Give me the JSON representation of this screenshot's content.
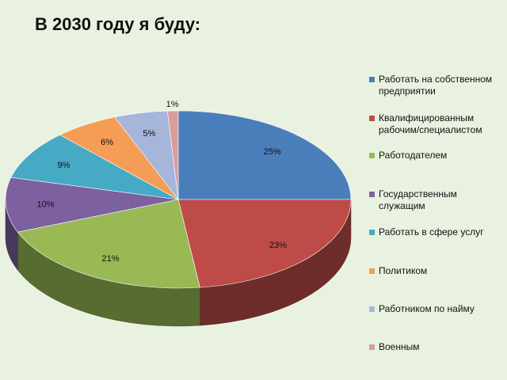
{
  "title": "В 2030 году я буду:",
  "chart_data": {
    "type": "pie",
    "title": "В 2030 году я буду:",
    "three_d": true,
    "legend_position": "right",
    "slices": [
      {
        "label": "Работать на собственном предприятии",
        "value": 25,
        "display": "25%",
        "color": "#4a7ebb"
      },
      {
        "label": "Квалифицированным рабочим/специалистом",
        "value": 23,
        "display": "23%",
        "color": "#be4b48"
      },
      {
        "label": "Работодателем",
        "value": 21,
        "display": "21%",
        "color": "#98b954"
      },
      {
        "label": "Государственным служащим",
        "value": 10,
        "display": "10%",
        "color": "#7d60a0"
      },
      {
        "label": "Работать в сфере услуг",
        "value": 9,
        "display": "9%",
        "color": "#46aac5"
      },
      {
        "label": "Политиком",
        "value": 6,
        "display": "6%",
        "color": "#f59d56"
      },
      {
        "label": "Работником по найму",
        "value": 5,
        "display": "5%",
        "color": "#a5b6da"
      },
      {
        "label": "Военным",
        "value": 1,
        "display": "1%",
        "color": "#db9d9c"
      }
    ]
  }
}
